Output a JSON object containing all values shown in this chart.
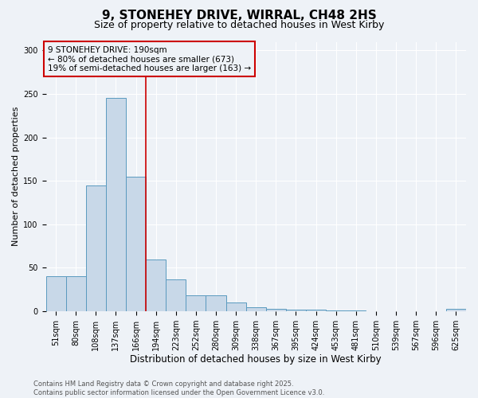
{
  "title1": "9, STONEHEY DRIVE, WIRRAL, CH48 2HS",
  "title2": "Size of property relative to detached houses in West Kirby",
  "xlabel": "Distribution of detached houses by size in West Kirby",
  "ylabel": "Number of detached properties",
  "categories": [
    "51sqm",
    "80sqm",
    "108sqm",
    "137sqm",
    "166sqm",
    "194sqm",
    "223sqm",
    "252sqm",
    "280sqm",
    "309sqm",
    "338sqm",
    "367sqm",
    "395sqm",
    "424sqm",
    "453sqm",
    "481sqm",
    "510sqm",
    "539sqm",
    "567sqm",
    "596sqm",
    "625sqm"
  ],
  "values": [
    40,
    40,
    145,
    245,
    155,
    60,
    37,
    18,
    18,
    10,
    5,
    3,
    2,
    2,
    1,
    1,
    0,
    0,
    0,
    0,
    3
  ],
  "bar_color": "#c8d8e8",
  "bar_edge_color": "#5a9abf",
  "vline_x_index": 5,
  "vline_color": "#cc0000",
  "annotation_text": "9 STONEHEY DRIVE: 190sqm\n← 80% of detached houses are smaller (673)\n19% of semi-detached houses are larger (163) →",
  "annotation_box_color": "#cc0000",
  "ylim": [
    0,
    310
  ],
  "yticks": [
    0,
    50,
    100,
    150,
    200,
    250,
    300
  ],
  "background_color": "#eef2f7",
  "grid_color": "#ffffff",
  "footer1": "Contains HM Land Registry data © Crown copyright and database right 2025.",
  "footer2": "Contains public sector information licensed under the Open Government Licence v3.0.",
  "title1_fontsize": 11,
  "title2_fontsize": 9,
  "xlabel_fontsize": 8.5,
  "ylabel_fontsize": 8,
  "tick_fontsize": 7,
  "annotation_fontsize": 7.5,
  "footer_fontsize": 6
}
